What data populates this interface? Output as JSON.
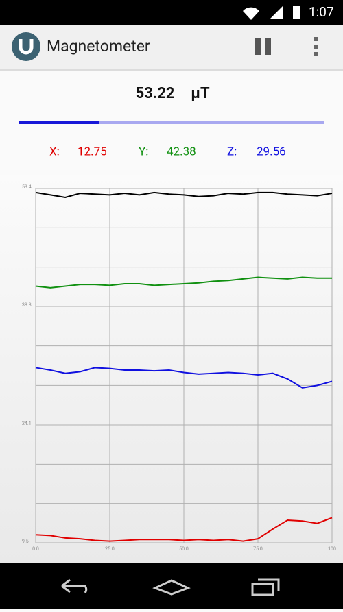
{
  "status_bar": {
    "time": "1:07"
  },
  "app_bar": {
    "title": "Magnetometer"
  },
  "reading": {
    "value": "53.22",
    "unit": "μT"
  },
  "axes": [
    {
      "label": "X:",
      "value": "12.75",
      "color": "#e00000"
    },
    {
      "label": "Y:",
      "value": "42.38",
      "color": "#109010"
    },
    {
      "label": "Z:",
      "value": "29.56",
      "color": "#1010e0"
    }
  ],
  "chart_data": {
    "type": "line",
    "x": [
      0,
      5,
      10,
      15,
      20,
      25,
      30,
      35,
      40,
      45,
      50,
      55,
      60,
      65,
      70,
      75,
      80,
      85,
      90,
      95,
      100
    ],
    "series": [
      {
        "color": "#000000",
        "values": [
          52.9,
          52.6,
          52.3,
          52.8,
          52.7,
          52.6,
          52.8,
          52.6,
          52.9,
          52.7,
          52.6,
          52.4,
          52.5,
          52.8,
          52.7,
          52.9,
          52.9,
          52.7,
          52.6,
          52.5,
          52.8
        ]
      },
      {
        "color": "#109010",
        "values": [
          41.3,
          41.1,
          41.3,
          41.5,
          41.5,
          41.4,
          41.6,
          41.6,
          41.4,
          41.5,
          41.6,
          41.7,
          41.9,
          42.0,
          42.2,
          42.4,
          42.3,
          42.2,
          42.4,
          42.3,
          42.3
        ]
      },
      {
        "color": "#1010e0",
        "values": [
          31.2,
          30.9,
          30.5,
          30.7,
          31.2,
          31.1,
          30.9,
          30.9,
          30.8,
          30.9,
          30.6,
          30.4,
          30.5,
          30.6,
          30.5,
          30.3,
          30.5,
          29.8,
          28.7,
          29.0,
          29.5
        ]
      },
      {
        "color": "#e00000",
        "values": [
          10.5,
          10.4,
          10.1,
          10.0,
          9.8,
          9.7,
          9.8,
          9.9,
          9.9,
          9.9,
          9.8,
          9.9,
          9.8,
          9.9,
          9.7,
          10.0,
          11.2,
          12.3,
          12.2,
          11.9,
          12.6
        ]
      }
    ],
    "xlim": [
      0,
      100
    ],
    "xticks": [
      {
        "value": 0,
        "label": "0.0"
      },
      {
        "value": 25,
        "label": "25.0"
      },
      {
        "value": 50,
        "label": "50.0"
      },
      {
        "value": 75,
        "label": "75.0"
      },
      100
    ],
    "ylim": [
      9.5,
      53.4
    ],
    "yticks": [
      9.5,
      24.1,
      38.8,
      53.4
    ],
    "grid": true,
    "grid_subdivisions": 3
  }
}
